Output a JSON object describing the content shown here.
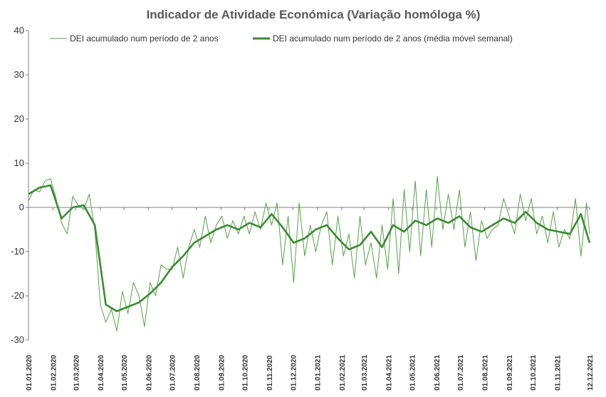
{
  "chart_data": {
    "type": "line",
    "title": "Indicador de Atividade Económica (Variação homóloga %)",
    "xlabel": "",
    "ylabel": "",
    "ylim": [
      -30,
      40
    ],
    "yticks": [
      "-30",
      "-20",
      "-10",
      "0",
      "10",
      "20",
      "30",
      "40"
    ],
    "x_range": [
      "2020-01-01",
      "2021-12-12"
    ],
    "x_tick_labels": [
      "01.01.2020",
      "01.02.2020",
      "01.03.2020",
      "01.04.2020",
      "01.05.2020",
      "01.06.2020",
      "01.07.2020",
      "01.08.2020",
      "01.09.2020",
      "01.10.2020",
      "01.11.2020",
      "01.12.2020",
      "01.01.2021",
      "01.02.2021",
      "01.03.2021",
      "01.04.2021",
      "01.05.2021",
      "01.06.2021",
      "01.07.2021",
      "01.08.2021",
      "01.09.2021",
      "01.10.2021",
      "01.11.2021",
      "12.12.2021"
    ],
    "legend_position": "top",
    "grid": false,
    "colors": {
      "daily": "#5a9e4b",
      "weekly": "#3c8a36"
    },
    "series": [
      {
        "name": "DEI acumulado num período de 2 anos",
        "style": "thin",
        "x": [
          "2020-01-01",
          "2020-01-08",
          "2020-01-15",
          "2020-01-22",
          "2020-01-29",
          "2020-02-05",
          "2020-02-12",
          "2020-02-19",
          "2020-02-26",
          "2020-03-04",
          "2020-03-11",
          "2020-03-18",
          "2020-03-25",
          "2020-04-01",
          "2020-04-08",
          "2020-04-15",
          "2020-04-22",
          "2020-04-29",
          "2020-05-06",
          "2020-05-13",
          "2020-05-20",
          "2020-05-27",
          "2020-06-03",
          "2020-06-10",
          "2020-06-17",
          "2020-06-24",
          "2020-07-01",
          "2020-07-08",
          "2020-07-15",
          "2020-07-22",
          "2020-07-29",
          "2020-08-05",
          "2020-08-12",
          "2020-08-19",
          "2020-08-26",
          "2020-09-02",
          "2020-09-09",
          "2020-09-16",
          "2020-09-23",
          "2020-09-30",
          "2020-10-07",
          "2020-10-14",
          "2020-10-21",
          "2020-10-28",
          "2020-11-04",
          "2020-11-11",
          "2020-11-18",
          "2020-11-25",
          "2020-12-02",
          "2020-12-09",
          "2020-12-16",
          "2020-12-23",
          "2020-12-30",
          "2021-01-06",
          "2021-01-13",
          "2021-01-20",
          "2021-01-27",
          "2021-02-03",
          "2021-02-10",
          "2021-02-17",
          "2021-02-24",
          "2021-03-03",
          "2021-03-10",
          "2021-03-17",
          "2021-03-24",
          "2021-03-31",
          "2021-04-07",
          "2021-04-14",
          "2021-04-21",
          "2021-04-28",
          "2021-05-05",
          "2021-05-12",
          "2021-05-19",
          "2021-05-26",
          "2021-06-02",
          "2021-06-09",
          "2021-06-16",
          "2021-06-23",
          "2021-06-30",
          "2021-07-07",
          "2021-07-14",
          "2021-07-21",
          "2021-07-28",
          "2021-08-04",
          "2021-08-11",
          "2021-08-18",
          "2021-08-25",
          "2021-09-01",
          "2021-09-08",
          "2021-09-15",
          "2021-09-22",
          "2021-09-29",
          "2021-10-06",
          "2021-10-13",
          "2021-10-20",
          "2021-10-27",
          "2021-11-03",
          "2021-11-10",
          "2021-11-17",
          "2021-11-24",
          "2021-12-01",
          "2021-12-08",
          "2021-12-12"
        ],
        "values": [
          1.5,
          4.0,
          3.5,
          6.0,
          6.5,
          2.0,
          -3.5,
          -6.0,
          2.5,
          0.5,
          -0.5,
          3.0,
          -5.0,
          -22.0,
          -26.0,
          -23.0,
          -28.0,
          -19.0,
          -24.0,
          -17.0,
          -20.0,
          -27.0,
          -17.0,
          -20.0,
          -13.0,
          -14.0,
          -14.0,
          -9.0,
          -16.0,
          -9.0,
          -5.0,
          -9.0,
          -2.0,
          -8.0,
          -4.0,
          -2.0,
          -7.0,
          -3.0,
          -6.0,
          -2.0,
          -6.0,
          -1.0,
          -5.0,
          1.0,
          -4.0,
          1.0,
          -13.0,
          -2.0,
          -17.0,
          1.0,
          -11.0,
          -4.0,
          -10.0,
          -4.0,
          -1.0,
          -13.0,
          -2.0,
          -11.0,
          -6.0,
          -16.0,
          -2.0,
          -13.0,
          -8.0,
          -16.0,
          -4.0,
          -14.0,
          2.0,
          -15.0,
          4.0,
          -10.0,
          6.0,
          -11.0,
          4.0,
          -9.0,
          7.0,
          -5.0,
          3.0,
          -5.0,
          4.0,
          -9.0,
          -1.0,
          -12.0,
          -3.0,
          -7.0,
          -5.0,
          -4.0,
          2.0,
          -2.0,
          -6.0,
          3.0,
          -3.0,
          2.0,
          -6.0,
          -2.0,
          -8.0,
          -1.0,
          -9.0,
          -5.0,
          -7.0,
          2.0,
          -11.0,
          1.0,
          -6.0
        ]
      },
      {
        "name": "DEI acumulado num período de 2 anos (média móvel semanal)",
        "style": "thick",
        "x": [
          "2020-01-01",
          "2020-01-15",
          "2020-01-29",
          "2020-02-12",
          "2020-02-26",
          "2020-03-11",
          "2020-03-25",
          "2020-04-08",
          "2020-04-22",
          "2020-05-06",
          "2020-05-20",
          "2020-06-03",
          "2020-06-17",
          "2020-07-01",
          "2020-07-15",
          "2020-07-29",
          "2020-08-12",
          "2020-08-26",
          "2020-09-09",
          "2020-09-23",
          "2020-10-07",
          "2020-10-21",
          "2020-11-04",
          "2020-11-18",
          "2020-12-02",
          "2020-12-16",
          "2020-12-30",
          "2021-01-13",
          "2021-01-27",
          "2021-02-10",
          "2021-02-24",
          "2021-03-10",
          "2021-03-24",
          "2021-04-07",
          "2021-04-21",
          "2021-05-05",
          "2021-05-19",
          "2021-06-02",
          "2021-06-16",
          "2021-06-30",
          "2021-07-14",
          "2021-07-28",
          "2021-08-11",
          "2021-08-25",
          "2021-09-08",
          "2021-09-22",
          "2021-10-06",
          "2021-10-20",
          "2021-11-03",
          "2021-11-17",
          "2021-12-01",
          "2021-12-12"
        ],
        "values": [
          3.0,
          4.5,
          5.0,
          -2.5,
          0.0,
          0.5,
          -4.0,
          -22.0,
          -23.5,
          -22.5,
          -21.5,
          -19.5,
          -17.0,
          -13.5,
          -11.0,
          -8.0,
          -6.5,
          -5.0,
          -4.0,
          -5.0,
          -3.5,
          -4.5,
          -1.5,
          -4.5,
          -8.0,
          -7.0,
          -5.0,
          -4.0,
          -7.0,
          -9.5,
          -8.5,
          -5.5,
          -9.0,
          -4.0,
          -5.5,
          -3.0,
          -4.0,
          -2.5,
          -3.5,
          -2.0,
          -4.5,
          -5.5,
          -4.0,
          -2.5,
          -3.5,
          -1.0,
          -3.5,
          -5.0,
          -5.5,
          -6.0,
          -1.5,
          -8.0
        ]
      }
    ]
  }
}
